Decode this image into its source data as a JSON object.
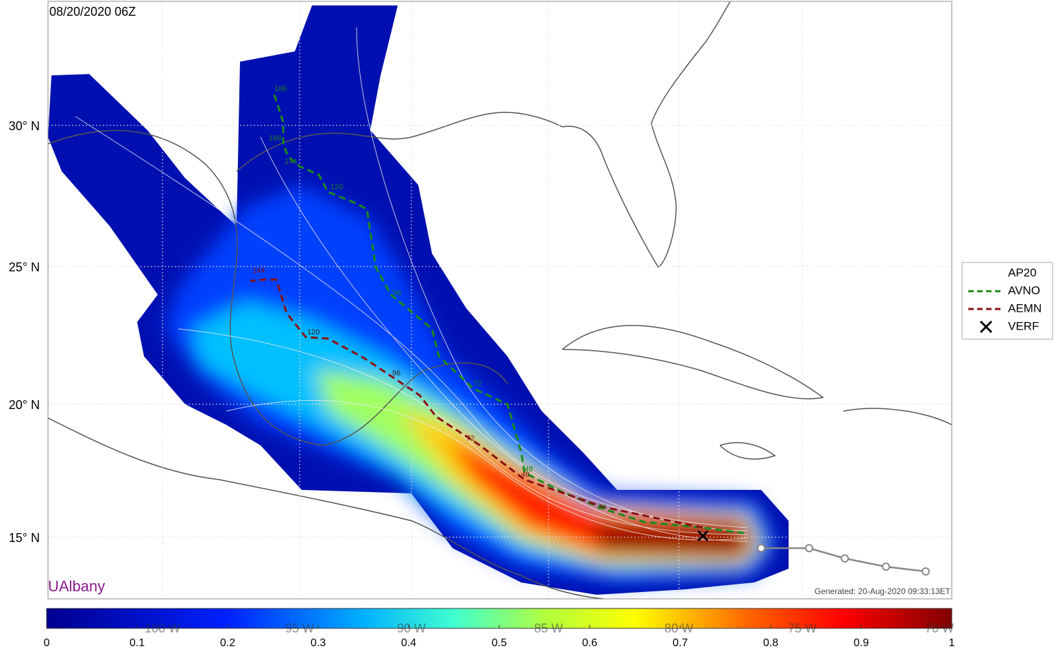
{
  "header": {
    "title": "08/20/2020 06Z"
  },
  "lat_labels": [
    "30° N",
    "25° N",
    "20° N",
    "15° N"
  ],
  "lon_labels": [
    "100  W",
    "95  W",
    "90  W",
    "85  W",
    "80  W",
    "75  W",
    "70  W"
  ],
  "track_labels": {
    "avno": [
      "186",
      "168",
      "144",
      "120",
      "96",
      "72",
      "48",
      "24"
    ],
    "aemn": [
      "144",
      "120",
      "96",
      "72",
      "48"
    ]
  },
  "legend": [
    "AP20",
    "AVNO",
    "AEMN",
    "VERF"
  ],
  "credit": "UAlbany",
  "generated": "Generated: 20-Aug-2020 09:33:13ET",
  "colorbar": {
    "lim": [
      0,
      1
    ],
    "ticks": [
      0,
      0.1,
      0.2,
      0.3,
      0.4,
      0.5,
      0.6,
      0.7,
      0.8,
      0.9,
      1
    ]
  }
}
